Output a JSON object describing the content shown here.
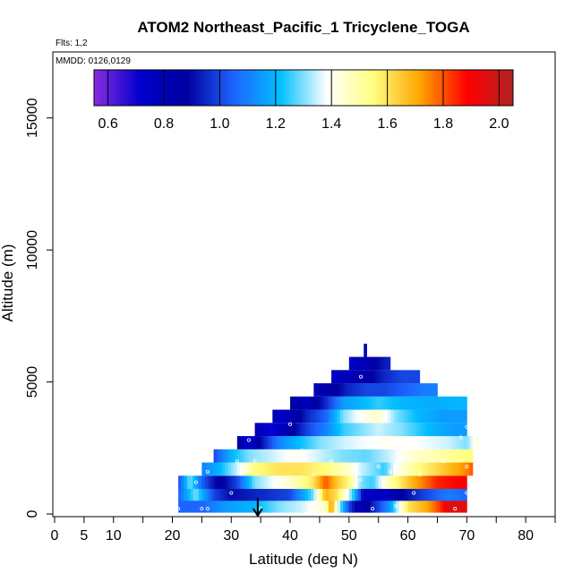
{
  "chart_data": {
    "type": "heatmap",
    "title": "ATOM2 Northeast_Pacific_1 Tricyclene_TOGA",
    "flights_label": "Flts: 1,2",
    "dates_label": "MMDD: 0126,0129",
    "xlabel": "Latitude (deg N)",
    "ylabel": "Altitude (m)",
    "xlim": [
      -0.3,
      85
    ],
    "ylim": [
      -100,
      17500
    ],
    "x_ticks": [
      0,
      5,
      10,
      15,
      20,
      25,
      30,
      35,
      40,
      45,
      50,
      55,
      60,
      65,
      70,
      75,
      80,
      85
    ],
    "x_tick_labels": [
      "0",
      "5",
      "10",
      "",
      "20",
      "",
      "30",
      "",
      "40",
      "",
      "50",
      "",
      "60",
      "",
      "70",
      "",
      "80",
      ""
    ],
    "y_ticks": [
      0,
      5000,
      10000,
      15000
    ],
    "y_tick_labels": [
      "0",
      "5000",
      "10000",
      "15000"
    ],
    "colorbar": {
      "range": [
        0.55,
        2.05
      ],
      "ticks": [
        0.6,
        0.8,
        1.0,
        1.2,
        1.4,
        1.6,
        1.8,
        2.0
      ],
      "tick_labels": [
        "0.6",
        "0.8",
        "1.0",
        "1.2",
        "1.4",
        "1.6",
        "1.8",
        "2.0"
      ],
      "colors": [
        "#8A2BE2",
        "#0000CD",
        "#0000A0",
        "#1E64FF",
        "#00BFFF",
        "#FFFFFF",
        "#FFFF80",
        "#FFA500",
        "#FF0000",
        "#B22222"
      ]
    },
    "marker_latitude": 34.5,
    "layers": [
      {
        "alt": 300,
        "lat_min": 21,
        "lat_max": 70,
        "stops": [
          [
            21,
            1.05
          ],
          [
            25,
            1.05
          ],
          [
            29,
            1.15
          ],
          [
            34,
            1.2
          ],
          [
            38,
            1.3
          ],
          [
            42,
            1.35
          ],
          [
            46,
            1.45
          ],
          [
            47,
            1.75
          ],
          [
            48,
            1.4
          ],
          [
            50,
            1.0
          ],
          [
            52,
            0.8
          ],
          [
            55,
            1.0
          ],
          [
            57,
            1.15
          ],
          [
            60,
            1.6
          ],
          [
            63,
            1.7
          ],
          [
            65,
            1.8
          ],
          [
            67,
            1.95
          ],
          [
            70,
            1.95
          ]
        ]
      },
      {
        "alt": 750,
        "lat_min": 21,
        "lat_max": 70,
        "stops": [
          [
            21,
            1.05
          ],
          [
            24,
            1.3
          ],
          [
            27,
            1.0
          ],
          [
            30,
            0.9
          ],
          [
            35,
            0.95
          ],
          [
            40,
            1.0
          ],
          [
            44,
            1.3
          ],
          [
            46,
            1.7
          ],
          [
            48,
            1.6
          ],
          [
            50,
            1.35
          ],
          [
            51,
            1.2
          ],
          [
            53,
            0.75
          ],
          [
            56,
            0.75
          ],
          [
            58,
            0.85
          ],
          [
            63,
            1.0
          ],
          [
            67,
            1.1
          ],
          [
            70,
            1.05
          ]
        ]
      },
      {
        "alt": 1200,
        "lat_min": 21,
        "lat_max": 70,
        "stops": [
          [
            21,
            1.0
          ],
          [
            23,
            1.3
          ],
          [
            25,
            1.05
          ],
          [
            28,
            0.85
          ],
          [
            31,
            1.0
          ],
          [
            34,
            1.3
          ],
          [
            40,
            1.45
          ],
          [
            44,
            1.6
          ],
          [
            46,
            1.8
          ],
          [
            48,
            1.65
          ],
          [
            50,
            1.55
          ],
          [
            52,
            1.3
          ],
          [
            54,
            1.25
          ],
          [
            57,
            1.5
          ],
          [
            61,
            1.7
          ],
          [
            65,
            1.85
          ],
          [
            70,
            1.9
          ]
        ]
      },
      {
        "alt": 1700,
        "lat_min": 25,
        "lat_max": 71,
        "stops": [
          [
            25,
            1.1
          ],
          [
            28,
            1.2
          ],
          [
            31,
            1.35
          ],
          [
            34,
            1.55
          ],
          [
            38,
            1.6
          ],
          [
            42,
            1.6
          ],
          [
            46,
            1.55
          ],
          [
            50,
            1.45
          ],
          [
            52,
            1.35
          ],
          [
            54,
            1.3
          ],
          [
            56,
            1.25
          ],
          [
            58,
            1.4
          ],
          [
            62,
            1.55
          ],
          [
            66,
            1.65
          ],
          [
            70,
            1.75
          ],
          [
            71,
            1.8
          ]
        ]
      },
      {
        "alt": 2200,
        "lat_min": 27,
        "lat_max": 71,
        "stops": [
          [
            27,
            1.0
          ],
          [
            30,
            1.2
          ],
          [
            33,
            1.3
          ],
          [
            37,
            1.35
          ],
          [
            41,
            1.4
          ],
          [
            45,
            1.35
          ],
          [
            49,
            1.3
          ],
          [
            53,
            1.28
          ],
          [
            57,
            1.35
          ],
          [
            61,
            1.45
          ],
          [
            66,
            1.5
          ],
          [
            70,
            1.55
          ],
          [
            71,
            1.55
          ]
        ]
      },
      {
        "alt": 2700,
        "lat_min": 31,
        "lat_max": 72,
        "stops": [
          [
            31,
            0.9
          ],
          [
            33,
            0.7
          ],
          [
            35,
            0.9
          ],
          [
            38,
            1.1
          ],
          [
            41,
            1.2
          ],
          [
            45,
            1.3
          ],
          [
            49,
            1.35
          ],
          [
            53,
            1.38
          ],
          [
            57,
            1.4
          ],
          [
            62,
            1.38
          ],
          [
            67,
            1.35
          ],
          [
            70,
            1.3
          ],
          [
            72,
            1.45
          ]
        ]
      },
      {
        "alt": 3200,
        "lat_min": 34,
        "lat_max": 70,
        "stops": [
          [
            34,
            0.8
          ],
          [
            37,
            0.7
          ],
          [
            40,
            0.85
          ],
          [
            43,
            1.0
          ],
          [
            46,
            1.1
          ],
          [
            49,
            1.25
          ],
          [
            52,
            1.3
          ],
          [
            55,
            1.35
          ],
          [
            59,
            1.3
          ],
          [
            64,
            1.2
          ],
          [
            68,
            1.15
          ],
          [
            70,
            1.15
          ]
        ]
      },
      {
        "alt": 3700,
        "lat_min": 37,
        "lat_max": 70,
        "stops": [
          [
            37,
            0.8
          ],
          [
            39,
            0.75
          ],
          [
            41,
            0.85
          ],
          [
            43,
            0.95
          ],
          [
            46,
            1.05
          ],
          [
            49,
            1.3
          ],
          [
            52,
            1.4
          ],
          [
            55,
            1.45
          ],
          [
            58,
            1.3
          ],
          [
            62,
            1.2
          ],
          [
            66,
            1.15
          ],
          [
            70,
            1.15
          ]
        ]
      },
      {
        "alt": 4200,
        "lat_min": 40,
        "lat_max": 70,
        "stops": [
          [
            40,
            0.85
          ],
          [
            43,
            0.8
          ],
          [
            46,
            0.95
          ],
          [
            49,
            1.15
          ],
          [
            52,
            1.2
          ],
          [
            55,
            1.25
          ],
          [
            59,
            1.2
          ],
          [
            64,
            1.18
          ],
          [
            68,
            1.2
          ],
          [
            70,
            1.2
          ]
        ]
      },
      {
        "alt": 4700,
        "lat_min": 44,
        "lat_max": 65,
        "stops": [
          [
            44,
            0.8
          ],
          [
            47,
            0.85
          ],
          [
            50,
            0.95
          ],
          [
            53,
            1.0
          ],
          [
            56,
            1.0
          ],
          [
            60,
            1.05
          ],
          [
            63,
            1.1
          ],
          [
            65,
            1.1
          ]
        ]
      },
      {
        "alt": 5200,
        "lat_min": 47,
        "lat_max": 62,
        "stops": [
          [
            47,
            0.75
          ],
          [
            50,
            0.8
          ],
          [
            53,
            0.85
          ],
          [
            56,
            0.95
          ],
          [
            59,
            1.0
          ],
          [
            62,
            1.0
          ]
        ]
      },
      {
        "alt": 5700,
        "lat_min": 50,
        "lat_max": 57,
        "stops": [
          [
            50,
            0.75
          ],
          [
            53,
            0.8
          ],
          [
            55,
            0.9
          ],
          [
            57,
            0.95
          ]
        ]
      },
      {
        "alt": 6200,
        "lat_min": 52.5,
        "lat_max": 53,
        "stops": [
          [
            52.5,
            0.8
          ],
          [
            53,
            0.8
          ]
        ]
      }
    ],
    "samples": [
      [
        21,
        200
      ],
      [
        24,
        1200
      ],
      [
        25,
        200
      ],
      [
        26,
        200
      ],
      [
        26,
        1600
      ],
      [
        30,
        800
      ],
      [
        31,
        2000
      ],
      [
        33,
        2800
      ],
      [
        34,
        2000
      ],
      [
        35,
        200
      ],
      [
        40,
        3400
      ],
      [
        42,
        2400
      ],
      [
        44,
        1500
      ],
      [
        47,
        2000
      ],
      [
        52,
        1300
      ],
      [
        52,
        5200
      ],
      [
        54,
        200
      ],
      [
        55,
        1800
      ],
      [
        57,
        1600
      ],
      [
        58,
        300
      ],
      [
        61,
        800
      ],
      [
        62,
        1500
      ],
      [
        66,
        2000
      ],
      [
        68,
        200
      ],
      [
        69,
        2900
      ],
      [
        70,
        1800
      ],
      [
        70,
        3300
      ],
      [
        70,
        800
      ]
    ]
  }
}
